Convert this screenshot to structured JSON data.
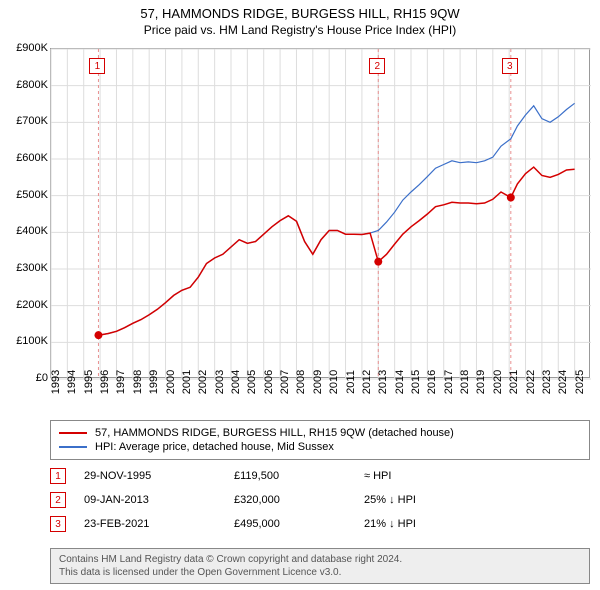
{
  "title": "57, HAMMONDS RIDGE, BURGESS HILL, RH15 9QW",
  "subtitle": "Price paid vs. HM Land Registry's House Price Index (HPI)",
  "chart": {
    "type": "line",
    "background_color": "#ffffff",
    "grid_color": "#dddddd",
    "border_color": "#999999",
    "x_range": [
      1993,
      2026
    ],
    "y_range": [
      0,
      900000
    ],
    "ytick_step": 100000,
    "ytick_prefix": "£",
    "ytick_suffix": "K",
    "ytick_divisor": 1000,
    "x_ticks": [
      1993,
      1994,
      1995,
      1996,
      1997,
      1998,
      1999,
      2000,
      2001,
      2002,
      2003,
      2004,
      2005,
      2006,
      2007,
      2008,
      2009,
      2010,
      2011,
      2012,
      2013,
      2014,
      2015,
      2016,
      2017,
      2018,
      2019,
      2020,
      2021,
      2022,
      2023,
      2024,
      2025
    ],
    "tick_fontsize": 11,
    "series": [
      {
        "name": "property",
        "label": "57, HAMMONDS RIDGE, BURGESS HILL, RH15 9QW (detached house)",
        "color": "#d40000",
        "line_width": 1.5,
        "data": [
          [
            1995.9,
            119500
          ],
          [
            1996.5,
            124000
          ],
          [
            1997.0,
            130000
          ],
          [
            1997.5,
            140000
          ],
          [
            1998.0,
            152000
          ],
          [
            1998.5,
            162000
          ],
          [
            1999.0,
            175000
          ],
          [
            1999.5,
            190000
          ],
          [
            2000.0,
            208000
          ],
          [
            2000.5,
            228000
          ],
          [
            2001.0,
            242000
          ],
          [
            2001.5,
            250000
          ],
          [
            2002.0,
            278000
          ],
          [
            2002.5,
            315000
          ],
          [
            2003.0,
            330000
          ],
          [
            2003.5,
            340000
          ],
          [
            2004.0,
            360000
          ],
          [
            2004.5,
            380000
          ],
          [
            2005.0,
            370000
          ],
          [
            2005.5,
            375000
          ],
          [
            2006.0,
            395000
          ],
          [
            2006.5,
            415000
          ],
          [
            2007.0,
            432000
          ],
          [
            2007.5,
            445000
          ],
          [
            2008.0,
            430000
          ],
          [
            2008.5,
            375000
          ],
          [
            2009.0,
            340000
          ],
          [
            2009.5,
            380000
          ],
          [
            2010.0,
            405000
          ],
          [
            2010.5,
            405000
          ],
          [
            2011.0,
            395000
          ],
          [
            2011.5,
            395000
          ],
          [
            2012.0,
            394000
          ],
          [
            2012.5,
            398000
          ],
          [
            2013.0,
            320000
          ],
          [
            2013.5,
            340000
          ],
          [
            2014.0,
            368000
          ],
          [
            2014.5,
            395000
          ],
          [
            2015.0,
            415000
          ],
          [
            2015.5,
            432000
          ],
          [
            2016.0,
            450000
          ],
          [
            2016.5,
            470000
          ],
          [
            2017.0,
            475000
          ],
          [
            2017.5,
            482000
          ],
          [
            2018.0,
            480000
          ],
          [
            2018.5,
            480000
          ],
          [
            2019.0,
            478000
          ],
          [
            2019.5,
            480000
          ],
          [
            2020.0,
            490000
          ],
          [
            2020.5,
            510000
          ],
          [
            2021.1,
            495000
          ],
          [
            2021.5,
            532000
          ],
          [
            2022.0,
            560000
          ],
          [
            2022.5,
            578000
          ],
          [
            2023.0,
            555000
          ],
          [
            2023.5,
            550000
          ],
          [
            2024.0,
            558000
          ],
          [
            2024.5,
            570000
          ],
          [
            2025.0,
            572000
          ]
        ]
      },
      {
        "name": "hpi",
        "label": "HPI: Average price, detached house, Mid Sussex",
        "color": "#3b6fc9",
        "line_width": 1.2,
        "data": [
          [
            1995.9,
            119500
          ],
          [
            1996.5,
            124000
          ],
          [
            1997.0,
            130000
          ],
          [
            1997.5,
            140000
          ],
          [
            1998.0,
            152000
          ],
          [
            1998.5,
            162000
          ],
          [
            1999.0,
            175000
          ],
          [
            1999.5,
            190000
          ],
          [
            2000.0,
            208000
          ],
          [
            2000.5,
            228000
          ],
          [
            2001.0,
            242000
          ],
          [
            2001.5,
            250000
          ],
          [
            2002.0,
            278000
          ],
          [
            2002.5,
            315000
          ],
          [
            2003.0,
            330000
          ],
          [
            2003.5,
            340000
          ],
          [
            2004.0,
            360000
          ],
          [
            2004.5,
            380000
          ],
          [
            2005.0,
            370000
          ],
          [
            2005.5,
            375000
          ],
          [
            2006.0,
            395000
          ],
          [
            2006.5,
            415000
          ],
          [
            2007.0,
            432000
          ],
          [
            2007.5,
            445000
          ],
          [
            2008.0,
            430000
          ],
          [
            2008.5,
            375000
          ],
          [
            2009.0,
            340000
          ],
          [
            2009.5,
            380000
          ],
          [
            2010.0,
            405000
          ],
          [
            2010.5,
            405000
          ],
          [
            2011.0,
            395000
          ],
          [
            2011.5,
            395000
          ],
          [
            2012.0,
            394000
          ],
          [
            2012.5,
            398000
          ],
          [
            2013.0,
            405000
          ],
          [
            2013.5,
            428000
          ],
          [
            2014.0,
            455000
          ],
          [
            2014.5,
            488000
          ],
          [
            2015.0,
            510000
          ],
          [
            2015.5,
            530000
          ],
          [
            2016.0,
            552000
          ],
          [
            2016.5,
            575000
          ],
          [
            2017.0,
            585000
          ],
          [
            2017.5,
            595000
          ],
          [
            2018.0,
            590000
          ],
          [
            2018.5,
            592000
          ],
          [
            2019.0,
            590000
          ],
          [
            2019.5,
            595000
          ],
          [
            2020.0,
            605000
          ],
          [
            2020.5,
            635000
          ],
          [
            2021.1,
            655000
          ],
          [
            2021.5,
            690000
          ],
          [
            2022.0,
            720000
          ],
          [
            2022.5,
            745000
          ],
          [
            2023.0,
            710000
          ],
          [
            2023.5,
            700000
          ],
          [
            2024.0,
            715000
          ],
          [
            2024.5,
            735000
          ],
          [
            2025.0,
            752000
          ]
        ]
      }
    ],
    "sale_markers": [
      {
        "n": "1",
        "x": 1995.9,
        "y": 119500,
        "color": "#d40000"
      },
      {
        "n": "2",
        "x": 2013.0,
        "y": 320000,
        "color": "#d40000"
      },
      {
        "n": "3",
        "x": 2021.1,
        "y": 495000,
        "color": "#d40000"
      }
    ],
    "marker_vline_color": "#e89090",
    "marker_vline_dash": "3,3"
  },
  "legend": {
    "border_color": "#888888",
    "fontsize": 11
  },
  "sales": [
    {
      "n": "1",
      "date": "29-NOV-1995",
      "price": "£119,500",
      "delta": "≈ HPI",
      "color": "#d40000"
    },
    {
      "n": "2",
      "date": "09-JAN-2013",
      "price": "£320,000",
      "delta": "25% ↓ HPI",
      "color": "#d40000"
    },
    {
      "n": "3",
      "date": "23-FEB-2021",
      "price": "£495,000",
      "delta": "21% ↓ HPI",
      "color": "#d40000"
    }
  ],
  "footer": {
    "line1": "Contains HM Land Registry data © Crown copyright and database right 2024.",
    "line2": "This data is licensed under the Open Government Licence v3.0.",
    "background": "#eeeeee",
    "border_color": "#888888",
    "text_color": "#555555"
  }
}
